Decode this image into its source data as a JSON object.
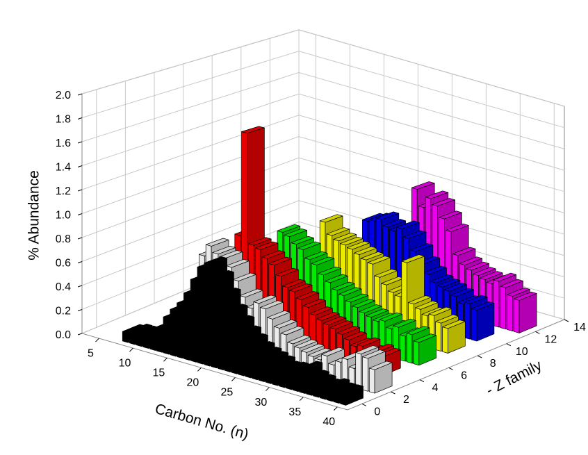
{
  "chart_data": {
    "type": "bar3d",
    "x_label": "Carbon No. (n)",
    "y_label": "% Abundance",
    "z_label": "- Z family",
    "x": [
      8,
      9,
      10,
      11,
      12,
      13,
      14,
      15,
      16,
      17,
      18,
      19,
      20,
      21,
      22,
      23,
      24,
      25,
      26,
      27,
      28,
      29,
      30,
      31,
      32,
      33,
      34,
      35,
      36,
      37,
      38,
      39,
      40
    ],
    "xlim": [
      2.5,
      41.5
    ],
    "xticks": [
      5,
      10,
      15,
      20,
      25,
      30,
      35,
      40
    ],
    "ylim": [
      0,
      2
    ],
    "yticks": [
      {
        "value": 0,
        "label": "0.0"
      },
      {
        "value": 0.2,
        "label": "0.2"
      },
      {
        "value": 0.4,
        "label": "0.4"
      },
      {
        "value": 0.6,
        "label": "0.6"
      },
      {
        "value": 0.8,
        "label": "0.8"
      },
      {
        "value": 1,
        "label": "1.0"
      },
      {
        "value": 1.2,
        "label": "1.2"
      },
      {
        "value": 1.4,
        "label": "1.4"
      },
      {
        "value": 1.6,
        "label": "1.6"
      },
      {
        "value": 1.8,
        "label": "1.8"
      },
      {
        "value": 2,
        "label": "2.0"
      }
    ],
    "zlim": [
      -1,
      14
    ],
    "zticks": [
      0,
      2,
      4,
      6,
      8,
      10,
      12,
      14
    ],
    "grid": true,
    "series": [
      {
        "z": 0,
        "color": "#000000",
        "values": [
          0.08,
          0.1,
          0.1,
          0.12,
          0.15,
          0.2,
          0.3,
          0.38,
          0.45,
          0.55,
          0.68,
          0.8,
          0.85,
          0.75,
          0.62,
          0.5,
          0.42,
          0.35,
          0.3,
          0.25,
          0.22,
          0.2,
          0.18,
          0.15,
          0.16,
          0.12,
          0.2,
          0.14,
          0.12,
          0.1,
          0.12,
          0.1,
          0.1
        ]
      },
      {
        "z": 2,
        "color": "#ffffff",
        "values": [
          null,
          null,
          null,
          null,
          null,
          null,
          null,
          0.75,
          0.85,
          0.8,
          0.78,
          0.72,
          0.62,
          0.5,
          0.42,
          0.48,
          0.45,
          0.38,
          0.32,
          0.28,
          0.22,
          0.2,
          0.18,
          0.16,
          0.15,
          0.2,
          0.14,
          0.18,
          0.22,
          0.16,
          0.3,
          0.28,
          0.2
        ]
      },
      {
        "z": 4,
        "color": "#ff0000",
        "values": [
          null,
          null,
          null,
          null,
          null,
          null,
          null,
          null,
          0.85,
          1.75,
          0.8,
          0.78,
          0.72,
          0.68,
          0.6,
          0.52,
          0.5,
          0.45,
          0.4,
          0.35,
          0.32,
          0.3,
          0.28,
          0.25,
          0.22,
          0.18,
          0.2,
          0.15,
          0.18,
          0.16,
          null,
          null,
          null
        ]
      },
      {
        "z": 6,
        "color": "#00ff00",
        "values": [
          null,
          null,
          null,
          null,
          null,
          null,
          null,
          null,
          null,
          null,
          0.82,
          0.8,
          0.75,
          0.72,
          0.65,
          0.62,
          0.55,
          0.5,
          0.45,
          0.42,
          0.38,
          0.35,
          0.32,
          0.3,
          0.28,
          0.3,
          0.25,
          0.28,
          0.22,
          0.25,
          0.2,
          null,
          null
        ]
      },
      {
        "z": 8,
        "color": "#ffff00",
        "values": [
          null,
          null,
          null,
          null,
          null,
          null,
          null,
          null,
          null,
          null,
          null,
          null,
          0.85,
          0.75,
          0.72,
          0.7,
          0.68,
          0.65,
          0.62,
          0.6,
          0.5,
          0.45,
          0.4,
          0.38,
          0.7,
          0.35,
          0.32,
          0.28,
          0.3,
          0.25,
          0.22,
          null,
          null
        ]
      },
      {
        "z": 10,
        "color": "#0000ff",
        "values": [
          null,
          null,
          null,
          null,
          null,
          null,
          null,
          null,
          null,
          null,
          null,
          null,
          null,
          null,
          0.8,
          0.82,
          0.85,
          0.8,
          0.78,
          0.82,
          0.75,
          0.65,
          0.55,
          0.48,
          0.42,
          0.4,
          0.38,
          0.35,
          0.3,
          0.32,
          0.28,
          null,
          null
        ]
      },
      {
        "z": 12,
        "color": "#ff00ff",
        "values": [
          null,
          null,
          null,
          null,
          null,
          null,
          null,
          null,
          null,
          null,
          null,
          null,
          null,
          null,
          null,
          null,
          null,
          1.05,
          0.9,
          1.0,
          0.95,
          0.85,
          0.75,
          0.55,
          0.48,
          0.45,
          0.42,
          0.4,
          0.38,
          0.42,
          0.38,
          0.32,
          0.3
        ]
      }
    ]
  }
}
